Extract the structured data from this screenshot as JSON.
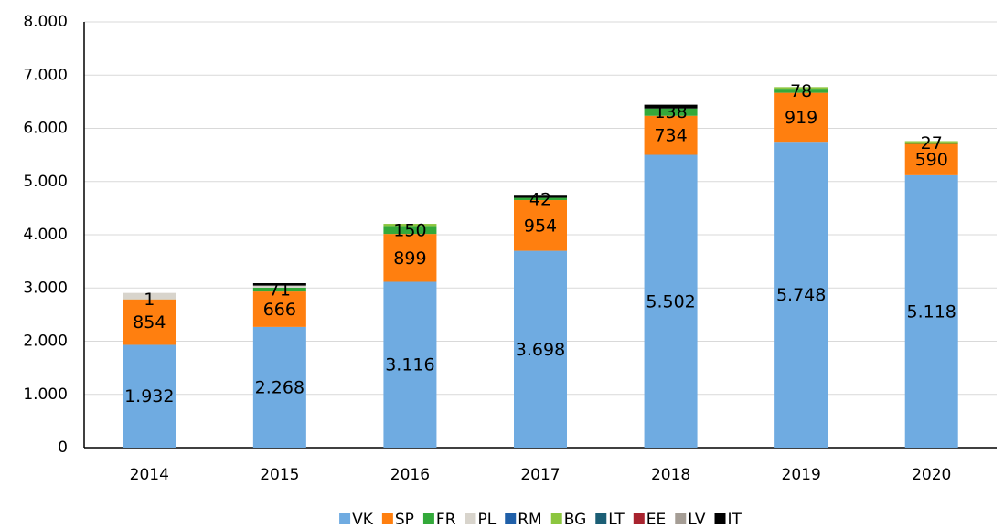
{
  "chart_data": {
    "type": "stacked_bar",
    "categories": [
      "2014",
      "2015",
      "2016",
      "2017",
      "2018",
      "2019",
      "2020"
    ],
    "series": [
      {
        "name": "VK",
        "color": "#6fabe1",
        "values": [
          1932,
          2268,
          3116,
          3698,
          5502,
          5748,
          5118
        ],
        "value_labels": [
          "1.932",
          "2.268",
          "3.116",
          "3.698",
          "5.502",
          "5.748",
          "5.118"
        ]
      },
      {
        "name": "SP",
        "color": "#ff7f0f",
        "values": [
          854,
          666,
          899,
          954,
          734,
          919,
          590
        ],
        "labels": true
      },
      {
        "name": "FR",
        "color": "#33a93a",
        "values": [
          1,
          71,
          150,
          42,
          138,
          78,
          27
        ],
        "labels": true
      },
      {
        "name": "PL",
        "color": "#d8d4cc",
        "values": [
          120,
          40,
          0,
          0,
          0,
          0,
          0
        ]
      },
      {
        "name": "RM",
        "color": "#1f5fa8",
        "values": [
          0,
          0,
          0,
          0,
          0,
          0,
          0
        ]
      },
      {
        "name": "BG",
        "color": "#8cc63f",
        "values": [
          0,
          0,
          40,
          0,
          0,
          30,
          25
        ]
      },
      {
        "name": "LT",
        "color": "#1b5e75",
        "values": [
          0,
          0,
          0,
          0,
          0,
          0,
          0
        ]
      },
      {
        "name": "EE",
        "color": "#a8232e",
        "values": [
          0,
          0,
          0,
          0,
          0,
          0,
          0
        ]
      },
      {
        "name": "LV",
        "color": "#a59d95",
        "values": [
          0,
          0,
          0,
          0,
          0,
          0,
          0
        ]
      },
      {
        "name": "IT",
        "color": "#000000",
        "values": [
          0,
          45,
          0,
          40,
          70,
          0,
          0
        ]
      }
    ],
    "ylim": [
      0,
      8000
    ],
    "yticks": [
      0,
      {
        "value": 1000,
        "label": "1.000"
      },
      {
        "value": 2000,
        "label": "2.000"
      },
      {
        "value": 3000,
        "label": "3.000"
      },
      {
        "value": 4000,
        "label": "4.000"
      },
      {
        "value": 5000,
        "label": "5.000"
      },
      {
        "value": 6000,
        "label": "6.000"
      },
      {
        "value": 7000,
        "label": "7.000"
      },
      {
        "value": 8000,
        "label": "8.000"
      }
    ],
    "grid": true,
    "legend": "bottom"
  }
}
